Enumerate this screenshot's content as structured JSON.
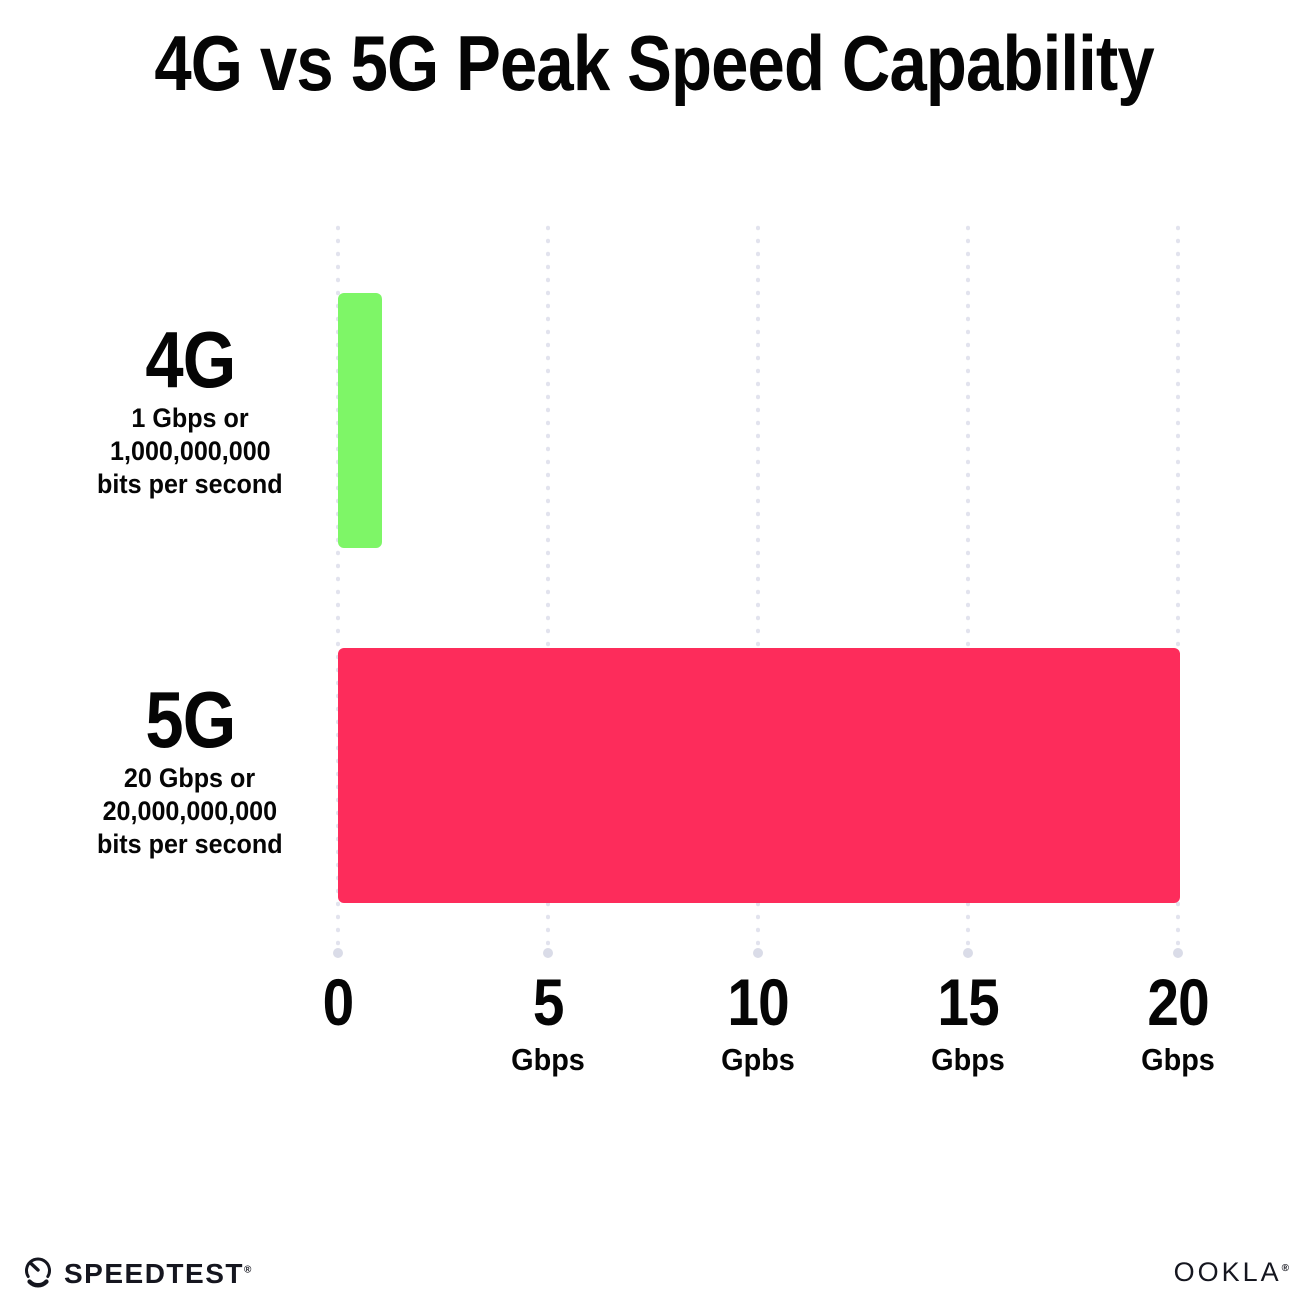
{
  "title": "4G vs 5G Peak Speed Capability",
  "chart_data": {
    "type": "bar",
    "orientation": "horizontal",
    "title": "4G vs 5G Peak Speed Capability",
    "categories": [
      "4G",
      "5G"
    ],
    "values": [
      1,
      20
    ],
    "value_unit": "Gbps",
    "bar_colors": [
      "#7EF667",
      "#FD2C5B"
    ],
    "series_labels": [
      {
        "name": "4G",
        "sublines": [
          "1 Gbps or",
          "1,000,000,000",
          "bits per second"
        ]
      },
      {
        "name": "5G",
        "sublines": [
          "20 Gbps or",
          "20,000,000,000",
          "bits per second"
        ]
      }
    ],
    "x_ticks": [
      {
        "value": "0",
        "unit": ""
      },
      {
        "value": "5",
        "unit": "Gbps"
      },
      {
        "value": "10",
        "unit": "Gpbs"
      },
      {
        "value": "15",
        "unit": "Gbps"
      },
      {
        "value": "20",
        "unit": "Gbps"
      }
    ],
    "xlim": [
      0,
      20
    ],
    "grid": "dotted-vertical",
    "grid_color": "#E2E3EE",
    "legend": "none"
  },
  "footer": {
    "speedtest_label": "SPEEDTEST",
    "speedtest_reg": "®",
    "ookla_label": "OOKLA",
    "ookla_reg": "®"
  }
}
